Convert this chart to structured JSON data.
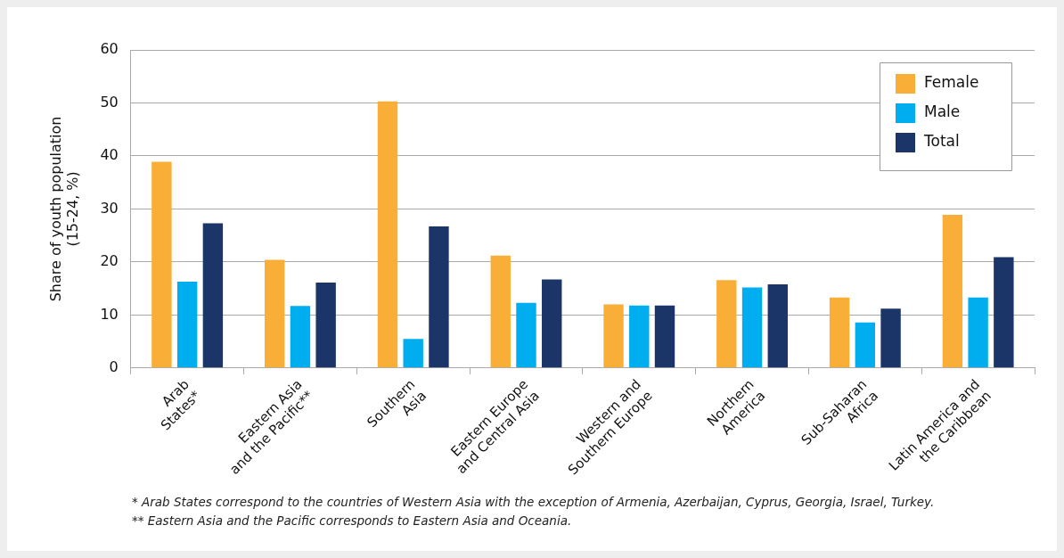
{
  "chart_data": {
    "type": "bar",
    "ylabel": "Share of youth population\n(15-24, %)",
    "categories": [
      "Arab\nStates*",
      "Eastern Asia\nand the Pacific**",
      "Southern\nAsia",
      "Eastern Europe\nand Central Asia",
      "Western and\nSouthern Europe",
      "Northern\nAmerica",
      "Sub-Saharan\nAfrica",
      "Latin America and\nthe Caribbean"
    ],
    "series": [
      {
        "name": "Female",
        "color": "#f9ae38",
        "values": [
          38.9,
          20.4,
          50.3,
          21.2,
          12.0,
          16.6,
          13.3,
          28.9
        ]
      },
      {
        "name": "Male",
        "color": "#00adee",
        "values": [
          16.3,
          11.7,
          5.5,
          12.3,
          11.8,
          15.2,
          8.6,
          13.3
        ]
      },
      {
        "name": "Total",
        "color": "#1c3568",
        "values": [
          27.3,
          16.1,
          26.7,
          16.7,
          11.8,
          15.8,
          11.2,
          20.9
        ]
      }
    ],
    "ylim": [
      0,
      60
    ],
    "yticks": [
      0,
      10,
      20,
      30,
      40,
      50,
      60
    ],
    "grid": "y",
    "legend": "top right",
    "annotations": [
      "* Arab States correspond to the countries of Western Asia with the exception of Armenia, Azerbaijan, Cyprus, Georgia, Israel, Turkey.",
      "** Eastern Asia and the Pacific corresponds to Eastern Asia and Oceania."
    ]
  }
}
